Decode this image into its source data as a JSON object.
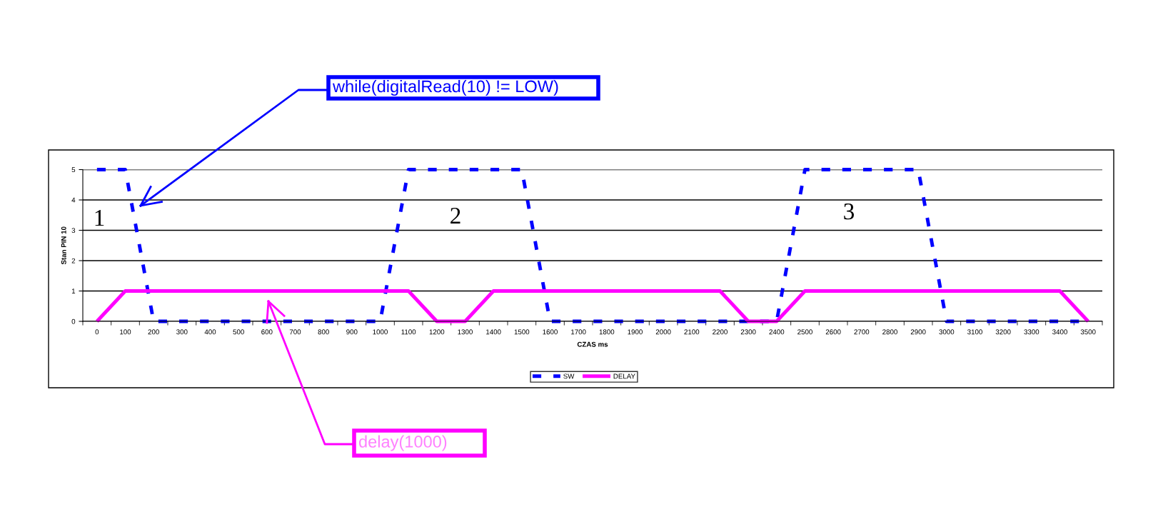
{
  "chart_data": {
    "type": "line",
    "xlabel": "CZAS ms",
    "ylabel": "Stan PIN 10",
    "categories": [
      "0",
      "100",
      "200",
      "300",
      "400",
      "500",
      "600",
      "700",
      "800",
      "900",
      "1000",
      "1100",
      "1200",
      "1300",
      "1400",
      "1500",
      "1600",
      "1700",
      "1800",
      "1900",
      "2000",
      "2100",
      "2200",
      "2300",
      "2400",
      "2500",
      "2600",
      "2700",
      "2800",
      "2900",
      "3000",
      "3100",
      "3200",
      "3300",
      "3400",
      "3500"
    ],
    "series": [
      {
        "name": "SW",
        "color": "#0000ff",
        "line_style": "dashed",
        "values": [
          5,
          5,
          0,
          0,
          0,
          0,
          0,
          0,
          0,
          0,
          0,
          5,
          5,
          5,
          5,
          5,
          0,
          0,
          0,
          0,
          0,
          0,
          0,
          0,
          0,
          5,
          5,
          5,
          5,
          5,
          0,
          0,
          0,
          0,
          0,
          0
        ]
      },
      {
        "name": "DELAY",
        "color": "#ff00ff",
        "line_style": "solid",
        "values": [
          0,
          1,
          1,
          1,
          1,
          1,
          1,
          1,
          1,
          1,
          1,
          1,
          0,
          0,
          1,
          1,
          1,
          1,
          1,
          1,
          1,
          1,
          1,
          0,
          0,
          1,
          1,
          1,
          1,
          1,
          1,
          1,
          1,
          1,
          1,
          0
        ]
      }
    ],
    "ylim": [
      0,
      5
    ],
    "yticks": [
      0,
      1,
      2,
      3,
      4,
      5
    ],
    "grid": "y",
    "legend": "bottom",
    "marker": "none",
    "annotations": [
      "1",
      "2",
      "3",
      "while(digitalRead(10) != LOW)",
      "delay(1000)"
    ]
  }
}
